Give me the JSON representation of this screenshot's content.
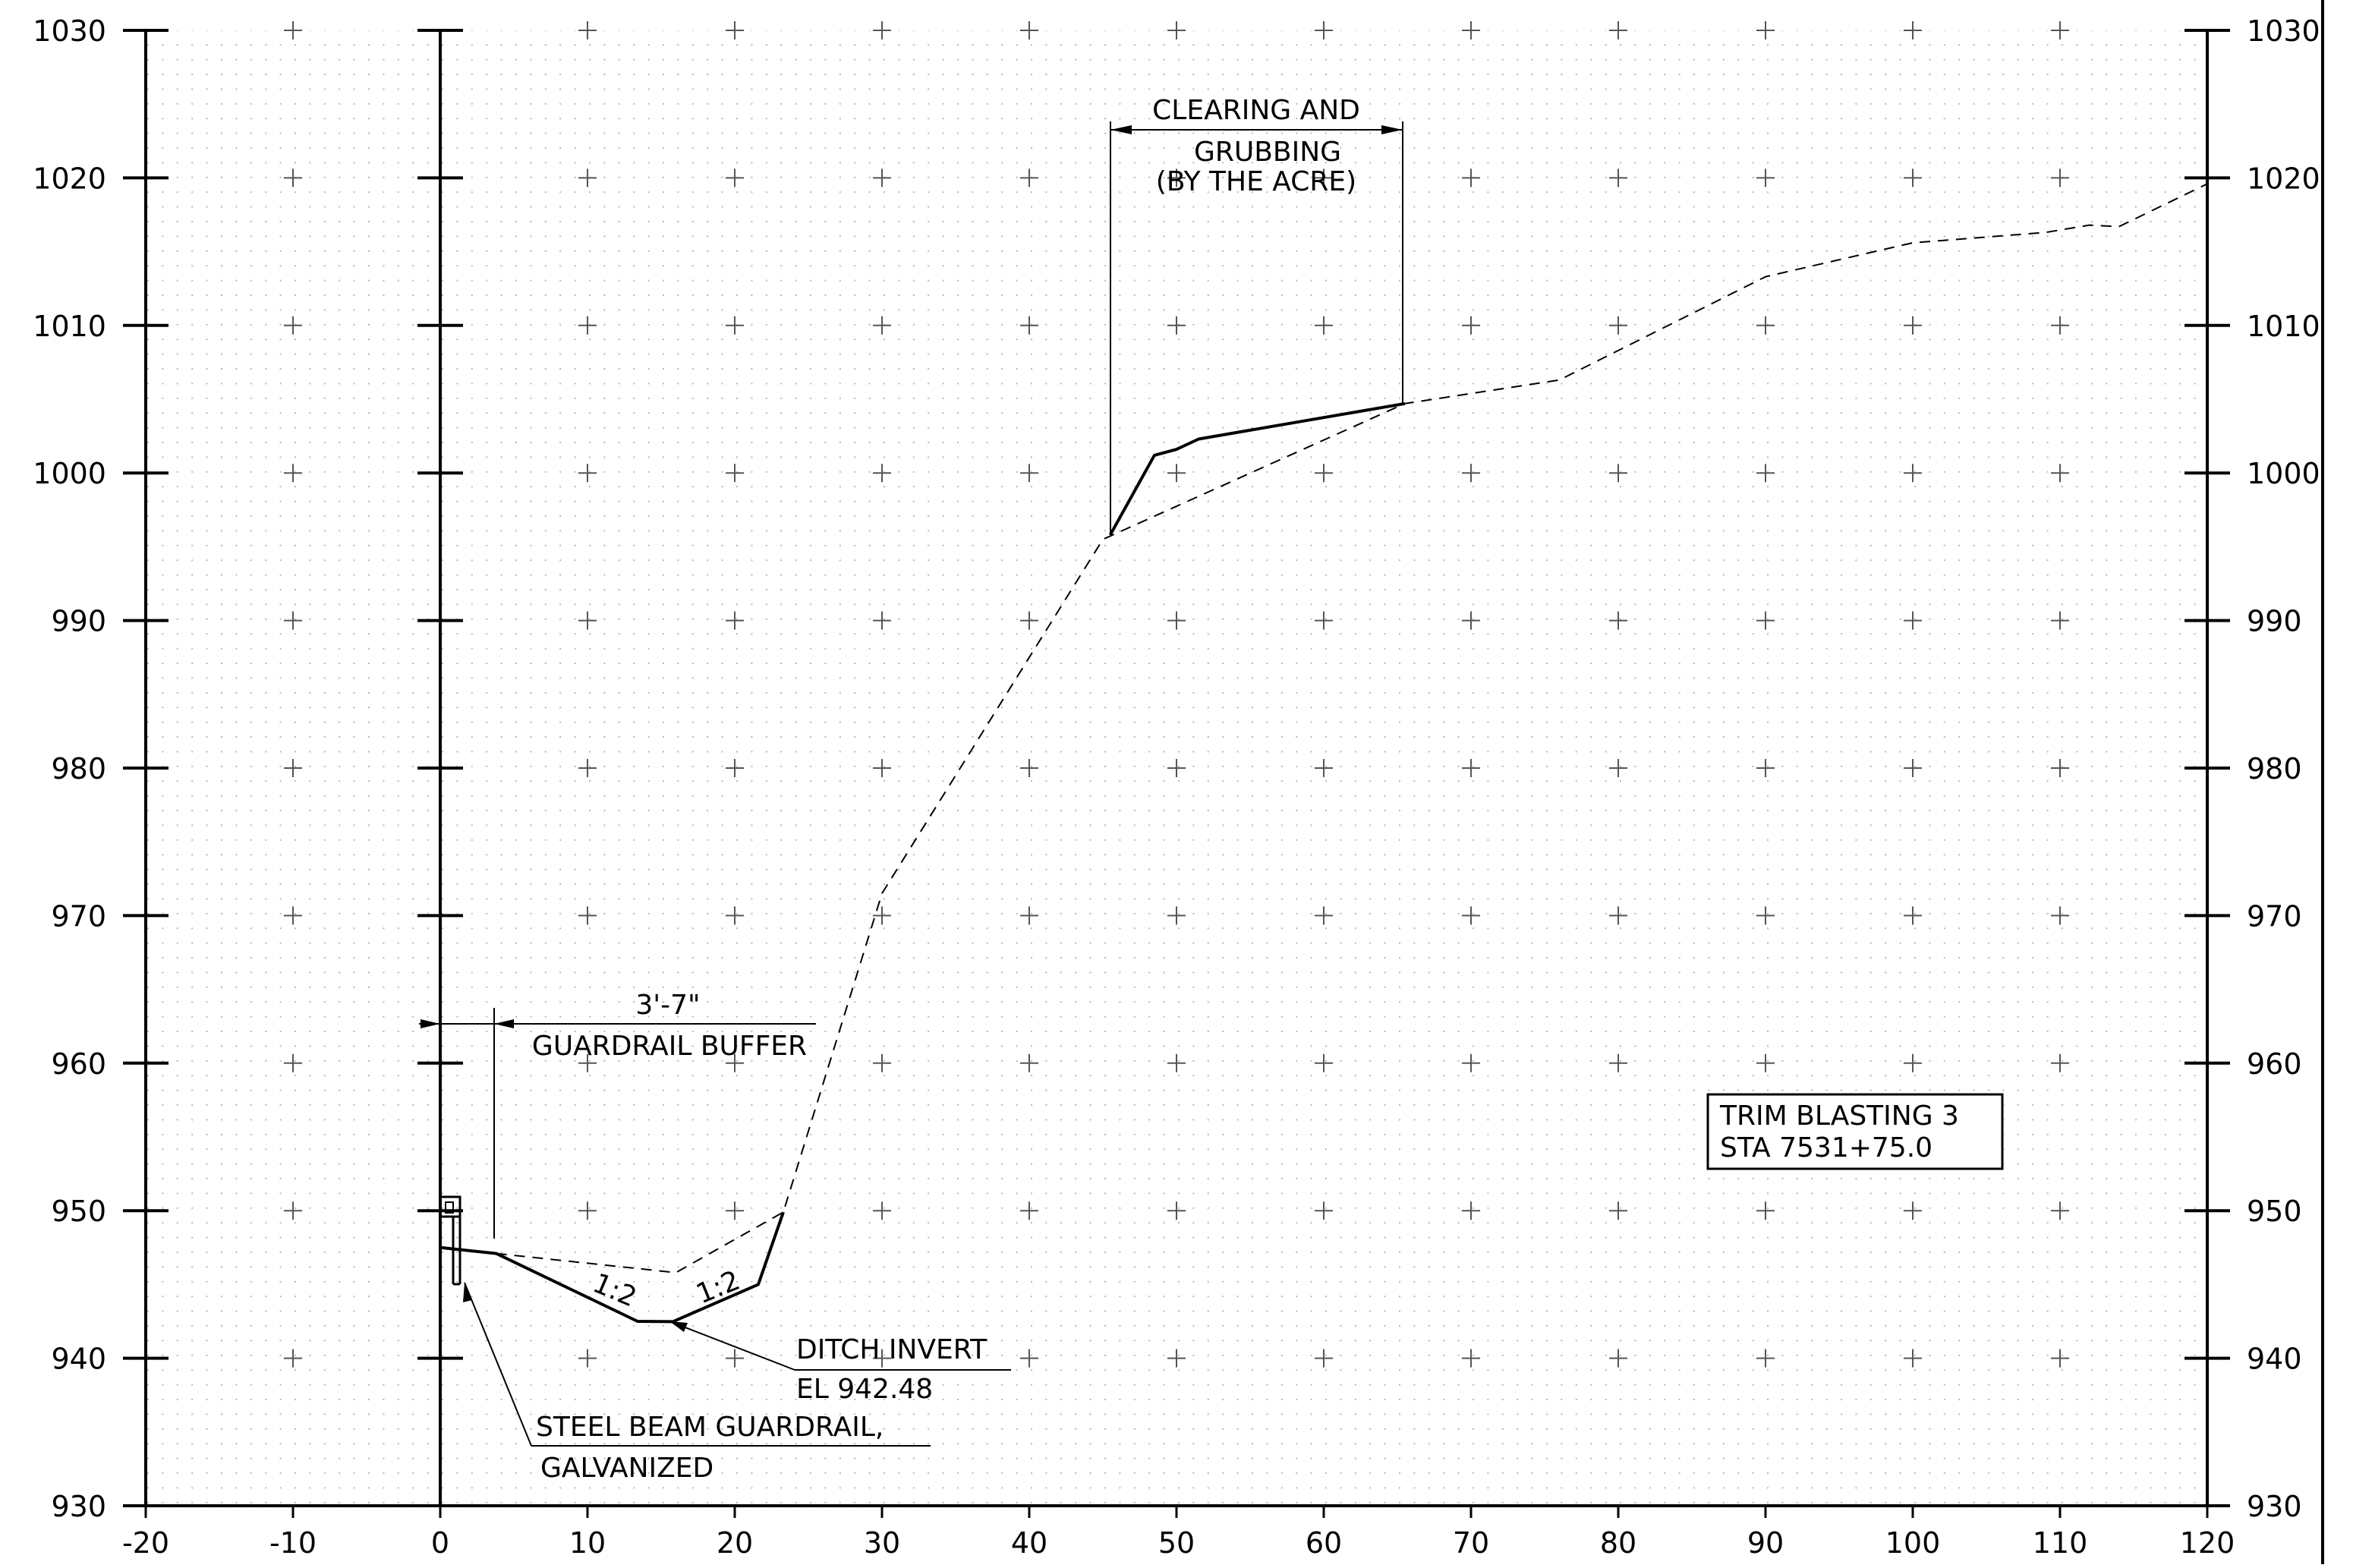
{
  "chart_data": {
    "type": "line",
    "title": "",
    "xlabel": "",
    "ylabel": "",
    "xlim": [
      -20,
      120
    ],
    "ylim": [
      930,
      1030
    ],
    "x_ticks": [
      -20,
      -10,
      0,
      10,
      20,
      30,
      40,
      50,
      60,
      70,
      80,
      90,
      100,
      110,
      120
    ],
    "x_tick_labels": [
      "-20",
      "-10",
      "0",
      "10",
      "20",
      "30",
      "40",
      "50",
      "60",
      "70",
      "80",
      "90",
      "100",
      "110",
      "120"
    ],
    "y_ticks": [
      930,
      940,
      950,
      960,
      970,
      980,
      990,
      1000,
      1010,
      1020,
      1030
    ],
    "y_tick_labels": [
      "930",
      "940",
      "950",
      "960",
      "970",
      "980",
      "990",
      "1000",
      "1010",
      "1020",
      "1030"
    ],
    "grid": "dotted grid with + markers every 10 units",
    "series": [
      {
        "style": "dashed",
        "points": [
          [
            3.8,
            947.1
          ],
          [
            16,
            945.8
          ],
          [
            23.3,
            949.9
          ],
          [
            30,
            971.5
          ],
          [
            45,
            995.5
          ],
          [
            65.5,
            1004.7
          ],
          [
            76,
            1006.3
          ],
          [
            90,
            1013.3
          ],
          [
            100,
            1015.6
          ],
          [
            109,
            1016.3
          ],
          [
            112,
            1016.8
          ],
          [
            114,
            1016.7
          ],
          [
            120,
            1019.6
          ]
        ]
      },
      {
        "style": "solid",
        "points": [
          [
            0,
            947.5
          ],
          [
            3.8,
            947.1
          ],
          [
            13.4,
            942.5
          ],
          [
            15.8,
            942.48
          ],
          [
            21.6,
            945
          ],
          [
            23.3,
            949.9
          ]
        ]
      },
      {
        "style": "solid",
        "points": [
          [
            45.5,
            995.8
          ],
          [
            48.5,
            1001.2
          ],
          [
            50,
            1001.6
          ],
          [
            51.5,
            1002.3
          ],
          [
            65.5,
            1004.7
          ]
        ]
      }
    ],
    "annotations": {
      "clearing_line1": "CLEARING AND",
      "clearing_line2": "GRUBBING",
      "clearing_line3": "(BY THE ACRE)",
      "buffer_dim": "3'-7\"",
      "buffer_label": "GUARDRAIL BUFFER",
      "slope_left": "1:2",
      "slope_right": "1:2",
      "ditch_line1": "DITCH INVERT",
      "ditch_line2": "EL 942.48",
      "guardrail_line1": "STEEL BEAM GUARDRAIL,",
      "guardrail_line2": "GALVANIZED",
      "box_line1": "TRIM BLASTING 3",
      "box_line2": "STA 7531+75.0"
    }
  }
}
